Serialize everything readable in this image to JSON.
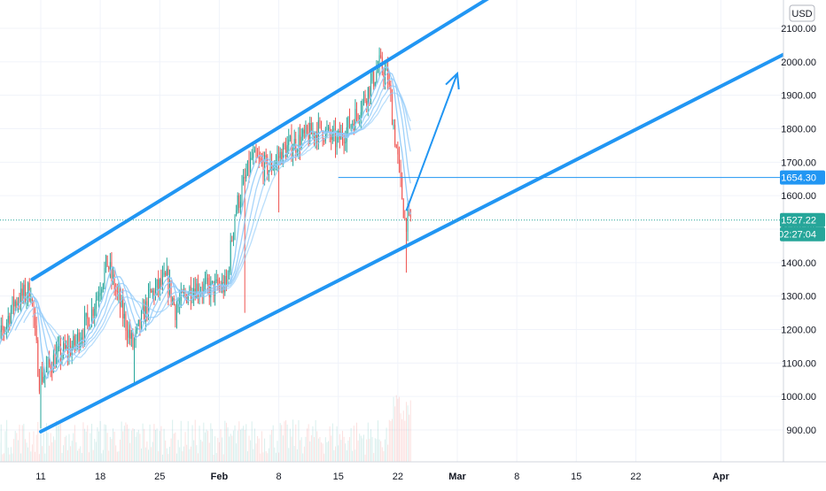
{
  "chart_data": {
    "type": "candlestick",
    "currency": "USD",
    "y_ticks": [
      "2100.00",
      "2000.00",
      "1900.00",
      "1800.00",
      "1700.00",
      "1600.00",
      "1500.00",
      "1400.00",
      "1300.00",
      "1200.00",
      "1100.00",
      "1000.00",
      "900.00"
    ],
    "y_tick_values": [
      2100,
      2000,
      1900,
      1800,
      1700,
      1600,
      1500,
      1400,
      1300,
      1200,
      1100,
      1000,
      900
    ],
    "ylim": [
      815,
      2150
    ],
    "x_ticks": [
      "11",
      "18",
      "25",
      "Feb",
      "8",
      "15",
      "22",
      "Mar",
      "8",
      "15",
      "22",
      "Apr"
    ],
    "x_tick_dates": [
      "2021-01-11",
      "2021-01-18",
      "2021-01-25",
      "2021-02-01",
      "2021-02-08",
      "2021-02-15",
      "2021-02-22",
      "2021-03-01",
      "2021-03-08",
      "2021-03-15",
      "2021-03-22",
      "2021-04-01"
    ],
    "price_tags": [
      {
        "label": "1654.30",
        "value": 1654.3,
        "color": "#2196f3"
      },
      {
        "label": "1527.22",
        "value": 1527.22,
        "color": "#26a69a"
      },
      {
        "label": "02:27:04",
        "value": 1488,
        "color": "#26a69a"
      }
    ],
    "horizontal_line": {
      "value": 1654.3,
      "from_date": "2021-02-15"
    },
    "channel_upper": {
      "from": [
        "2021-01-10",
        1350
      ],
      "to": [
        "2021-03-05",
        2195
      ]
    },
    "channel_lower": {
      "from": [
        "2021-01-11",
        895
      ],
      "to": [
        "2021-04-09",
        2030
      ]
    },
    "arrow": {
      "from": [
        "2021-02-23",
        1555
      ],
      "to": [
        "2021-03-01",
        1965
      ]
    },
    "ohlc_anchor_points": [
      [
        "2021-01-06",
        1150
      ],
      [
        "2021-01-08",
        1280
      ],
      [
        "2021-01-10",
        1320
      ],
      [
        "2021-01-11",
        1050
      ],
      [
        "2021-01-13",
        1120
      ],
      [
        "2021-01-15",
        1150
      ],
      [
        "2021-01-17",
        1240
      ],
      [
        "2021-01-19",
        1400
      ],
      [
        "2021-01-21",
        1230
      ],
      [
        "2021-01-22",
        1150
      ],
      [
        "2021-01-24",
        1300
      ],
      [
        "2021-01-26",
        1350
      ],
      [
        "2021-01-27",
        1260
      ],
      [
        "2021-01-29",
        1330
      ],
      [
        "2021-01-31",
        1320
      ],
      [
        "2021-02-02",
        1330
      ],
      [
        "2021-02-03",
        1550
      ],
      [
        "2021-02-05",
        1710
      ],
      [
        "2021-02-07",
        1680
      ],
      [
        "2021-02-09",
        1740
      ],
      [
        "2021-02-11",
        1770
      ],
      [
        "2021-02-13",
        1800
      ],
      [
        "2021-02-15",
        1760
      ],
      [
        "2021-02-17",
        1830
      ],
      [
        "2021-02-19",
        1930
      ],
      [
        "2021-02-20",
        1990
      ],
      [
        "2021-02-21",
        1950
      ],
      [
        "2021-02-22",
        1740
      ],
      [
        "2021-02-23",
        1527
      ]
    ]
  },
  "colors": {
    "up": "#26a69a",
    "down": "#ef5350",
    "ma": "#90caf9",
    "trend": "#2196f3",
    "grid": "#f0f3fa"
  }
}
